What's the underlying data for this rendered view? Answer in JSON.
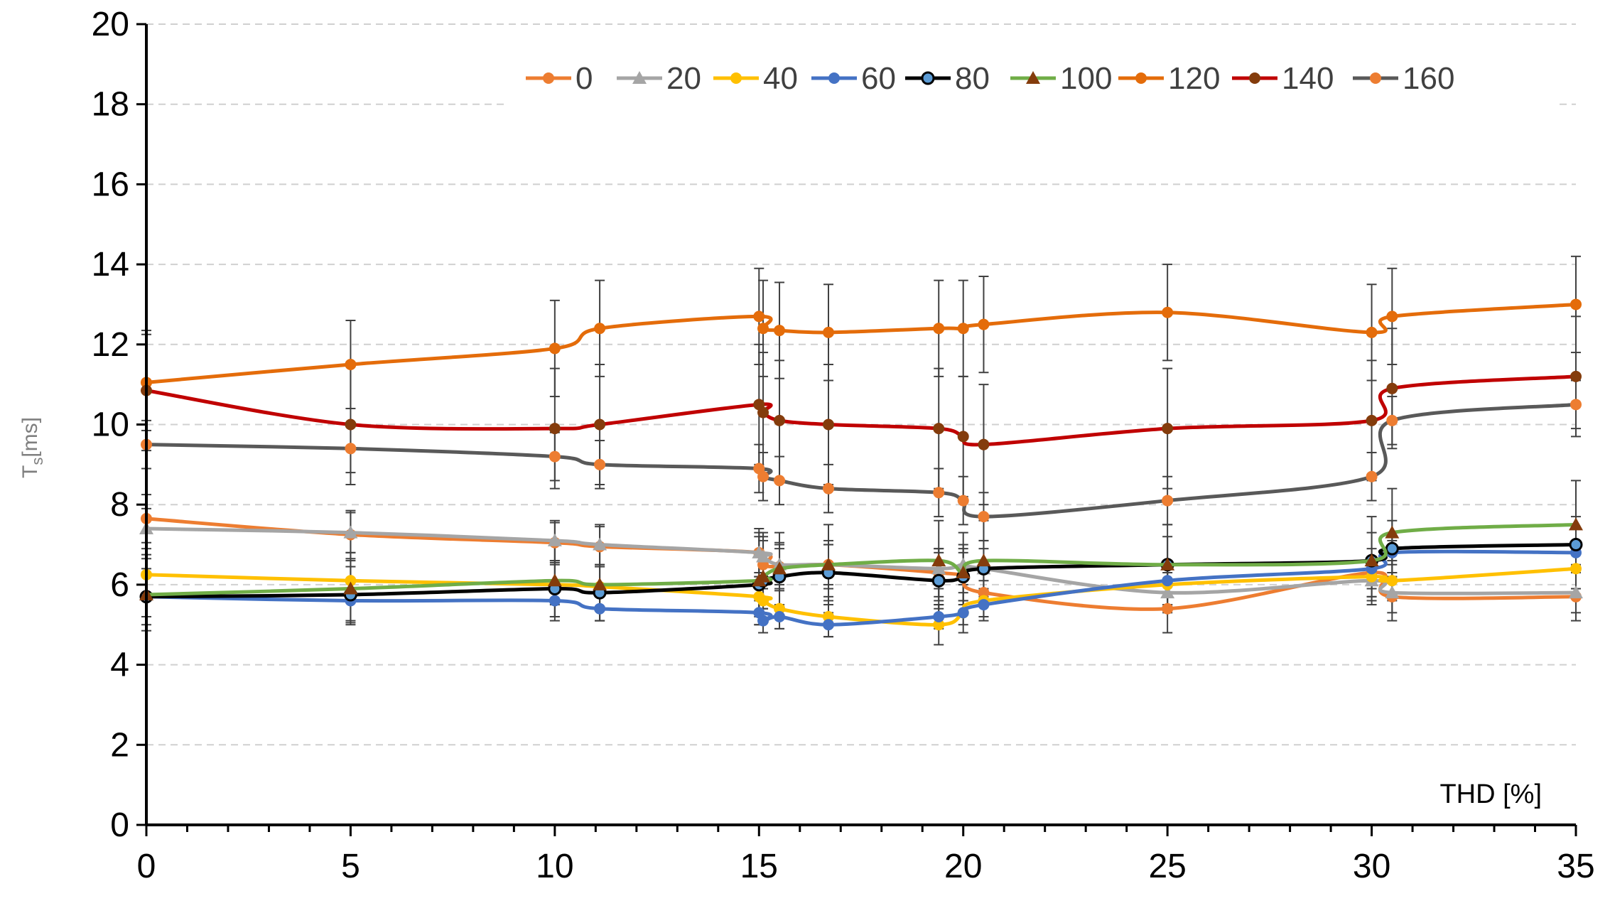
{
  "chart_data": {
    "type": "line",
    "title": "",
    "xlabel": "THD [%]",
    "ylabel_main": "T",
    "ylabel_sub": "s",
    "ylabel_rest": "[ms]",
    "xlim": [
      0,
      35
    ],
    "ylim": [
      0,
      20
    ],
    "x_ticks": [
      "0",
      "5",
      "10",
      "15",
      "20",
      "25",
      "30",
      "35"
    ],
    "y_ticks": [
      "0",
      "2",
      "4",
      "6",
      "8",
      "10",
      "12",
      "14",
      "16",
      "18",
      "20"
    ],
    "grid": "horizontal-dashed",
    "legend_position": "top-right",
    "x": [
      0,
      5,
      10,
      11.1,
      15,
      15.1,
      15.5,
      16.7,
      19.4,
      20,
      20.5,
      25,
      30,
      30.5,
      35
    ],
    "series": [
      {
        "name": "0",
        "color": "#ED7D31",
        "marker": "circle",
        "values": [
          7.65,
          7.25,
          7.05,
          6.95,
          6.8,
          6.5,
          6.45,
          6.5,
          6.3,
          6.2,
          5.8,
          5.4,
          6.3,
          5.7,
          5.7
        ],
        "errors": [
          0.6,
          0.6,
          0.5,
          0.5,
          0.6,
          0.6,
          0.6,
          0.6,
          0.6,
          0.6,
          0.6,
          0.6,
          0.6,
          0.6,
          0.6
        ]
      },
      {
        "name": "20",
        "color": "#A5A5A5",
        "marker": "triangle",
        "values": [
          7.4,
          7.3,
          7.1,
          7.0,
          6.8,
          6.7,
          6.5,
          6.5,
          6.4,
          6.5,
          6.4,
          5.8,
          6.1,
          5.8,
          5.8
        ],
        "errors": [
          0.5,
          0.5,
          0.5,
          0.5,
          0.5,
          0.5,
          0.5,
          0.5,
          0.5,
          0.5,
          0.5,
          0.5,
          0.5,
          0.5,
          0.5
        ]
      },
      {
        "name": "40",
        "color": "#FFC000",
        "marker": "circle",
        "values": [
          6.25,
          6.1,
          6.0,
          5.95,
          5.7,
          5.6,
          5.4,
          5.2,
          5.0,
          5.3,
          5.6,
          6.0,
          6.2,
          6.1,
          6.4
        ],
        "errors": [
          0.5,
          0.5,
          0.5,
          0.5,
          0.5,
          0.5,
          0.5,
          0.5,
          0.5,
          0.5,
          0.5,
          0.5,
          0.5,
          0.5,
          0.5
        ]
      },
      {
        "name": "60",
        "color": "#4472C4",
        "marker": "circle",
        "values": [
          5.7,
          5.6,
          5.6,
          5.4,
          5.3,
          5.1,
          5.2,
          5.0,
          5.2,
          5.3,
          5.5,
          6.1,
          6.4,
          6.8,
          6.8
        ],
        "errors": [
          0.5,
          0.5,
          0.5,
          0.3,
          0.3,
          0.3,
          0.3,
          0.3,
          0.3,
          0.3,
          0.3,
          0.3,
          0.3,
          0.3,
          0.3
        ]
      },
      {
        "name": "80",
        "color": "#000000",
        "marker": "circle-outline",
        "values": [
          5.7,
          5.75,
          5.9,
          5.8,
          6.0,
          6.1,
          6.2,
          6.3,
          6.1,
          6.2,
          6.4,
          6.5,
          6.6,
          6.9,
          7.0
        ],
        "errors": [
          0.7,
          0.7,
          0.7,
          0.7,
          0.7,
          0.7,
          0.7,
          0.7,
          0.7,
          0.7,
          0.7,
          0.7,
          0.7,
          0.7,
          0.7
        ]
      },
      {
        "name": "100",
        "color": "#70AD47",
        "marker": "triangle",
        "values": [
          5.75,
          5.9,
          6.1,
          6.0,
          6.1,
          6.2,
          6.4,
          6.5,
          6.6,
          6.3,
          6.6,
          6.5,
          6.6,
          7.3,
          7.5
        ],
        "errors": [
          0.9,
          0.9,
          0.9,
          0.9,
          1.1,
          1.1,
          0.9,
          1.0,
          1.0,
          1.0,
          1.0,
          1.0,
          1.1,
          1.1,
          1.1
        ]
      },
      {
        "name": "120",
        "color": "#E46C0A",
        "marker": "circle",
        "values": [
          11.05,
          11.5,
          11.9,
          12.4,
          12.7,
          12.4,
          12.35,
          12.3,
          12.4,
          12.4,
          12.5,
          12.8,
          12.3,
          12.7,
          13.0
        ],
        "errors": [
          1.2,
          1.1,
          1.2,
          1.2,
          1.2,
          1.2,
          1.2,
          1.2,
          1.2,
          1.2,
          1.2,
          1.2,
          1.2,
          1.2,
          1.2
        ]
      },
      {
        "name": "140",
        "color": "#C00000",
        "marker": "circle",
        "values": [
          10.85,
          10.0,
          9.9,
          10.0,
          10.5,
          10.3,
          10.1,
          10.0,
          9.9,
          9.7,
          9.5,
          9.9,
          10.1,
          10.9,
          11.2
        ],
        "errors": [
          1.5,
          1.5,
          1.5,
          1.5,
          1.5,
          1.5,
          1.5,
          1.5,
          1.5,
          1.5,
          1.5,
          1.5,
          1.5,
          1.5,
          1.5
        ]
      },
      {
        "name": "160",
        "color": "#595959",
        "marker": "circle-orange",
        "values": [
          9.5,
          9.4,
          9.2,
          9.0,
          8.9,
          8.7,
          8.6,
          8.4,
          8.3,
          8.1,
          7.7,
          8.1,
          8.7,
          10.1,
          10.5
        ],
        "errors": [
          0.6,
          0.6,
          0.6,
          0.6,
          0.6,
          0.6,
          0.6,
          0.6,
          0.6,
          0.6,
          0.6,
          0.6,
          0.6,
          0.6,
          0.6
        ]
      }
    ]
  }
}
